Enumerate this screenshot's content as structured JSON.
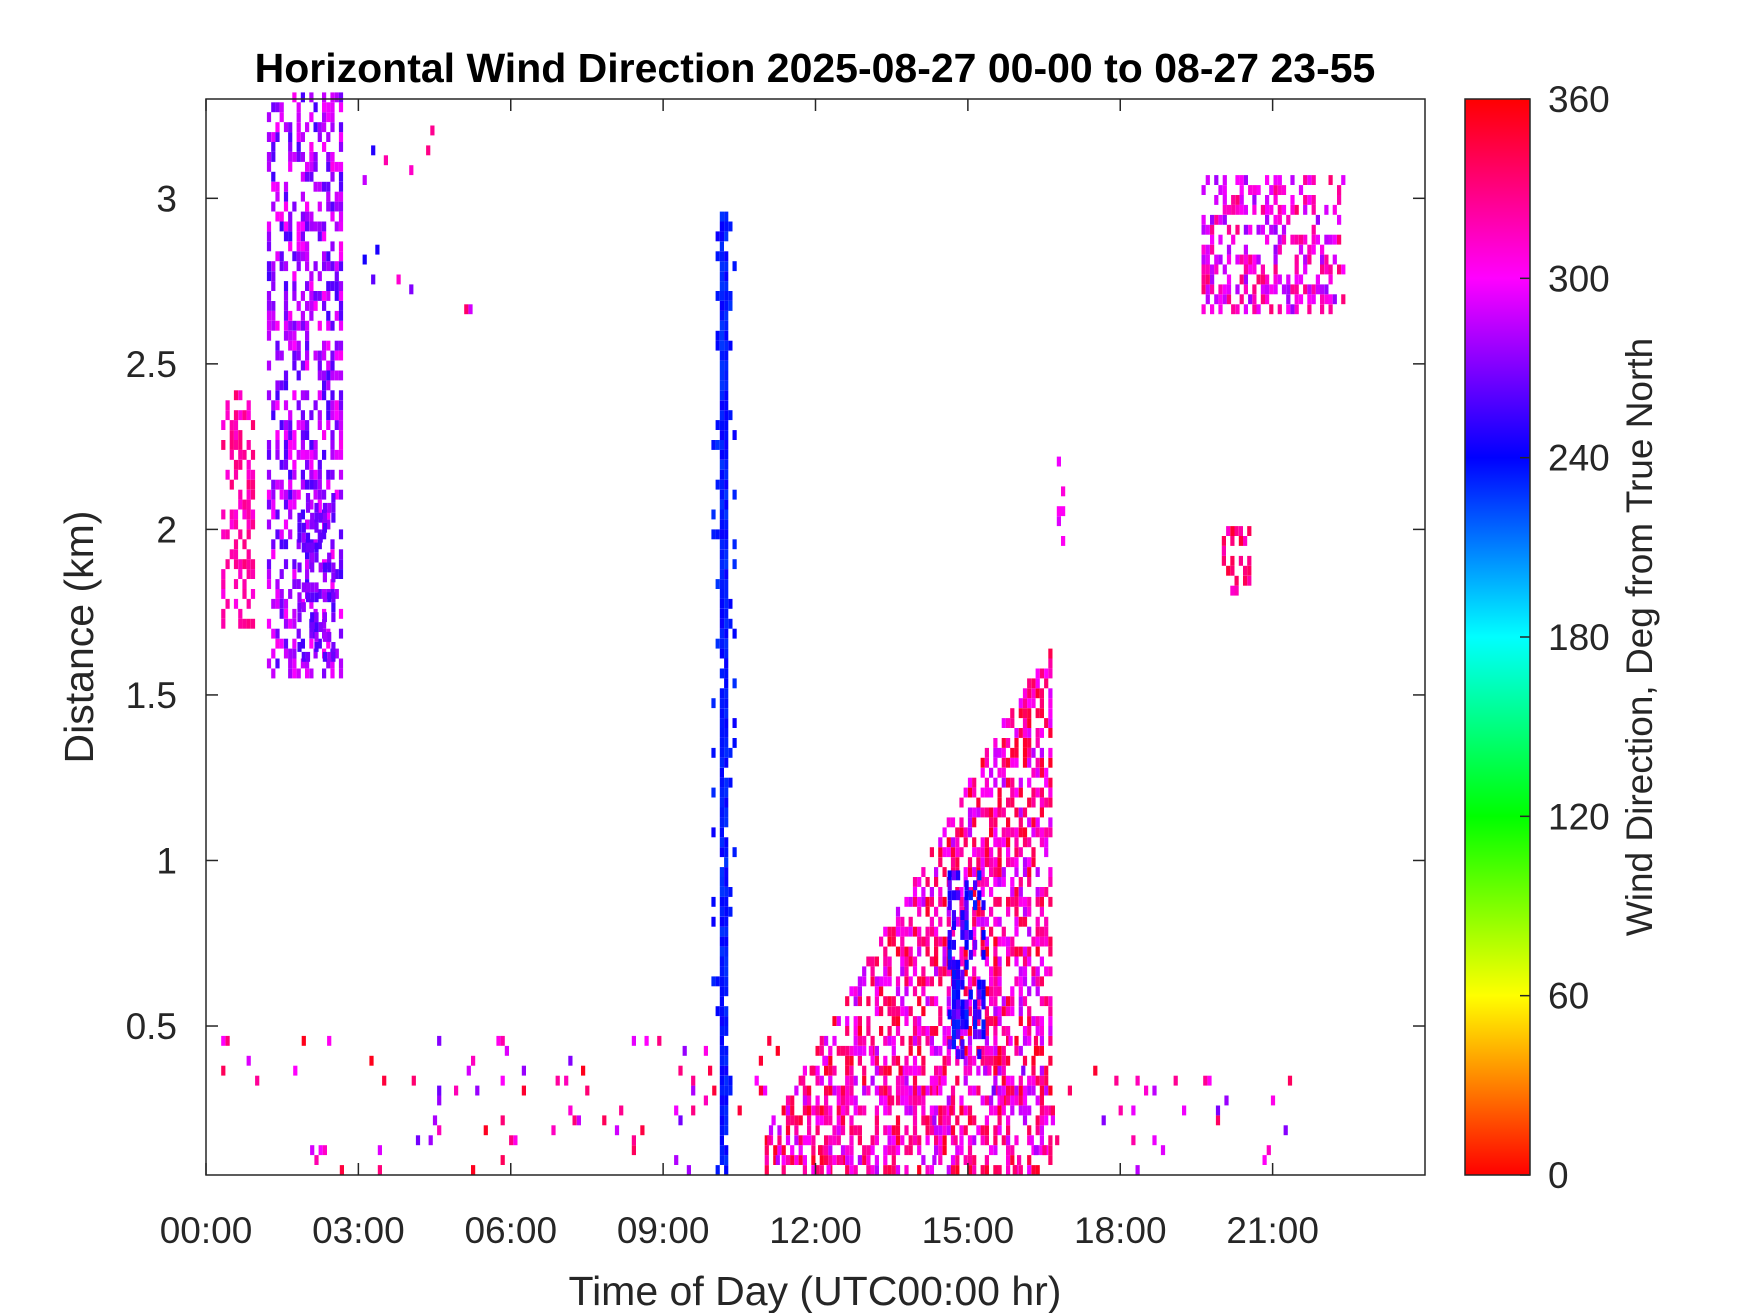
{
  "chart_data": {
    "type": "heatmap",
    "title": "Horizontal Wind Direction 2025-08-27 00-00 to 08-27 23-55",
    "xlabel": "Time of Day (UTC00:00 hr)",
    "ylabel": "Distance (km)",
    "colorbar_label": "Wind Direction, Deg from True North",
    "x_unit": "hours",
    "xlim": [
      0,
      24
    ],
    "ylim": [
      0.05,
      3.3
    ],
    "clim": [
      0,
      360
    ],
    "x_ticks": [
      {
        "value": 0,
        "label": "00:00"
      },
      {
        "value": 3,
        "label": "03:00"
      },
      {
        "value": 6,
        "label": "06:00"
      },
      {
        "value": 9,
        "label": "09:00"
      },
      {
        "value": 12,
        "label": "12:00"
      },
      {
        "value": 15,
        "label": "15:00"
      },
      {
        "value": 18,
        "label": "18:00"
      },
      {
        "value": 21,
        "label": "21:00"
      }
    ],
    "y_ticks": [
      {
        "value": 0.5,
        "label": "0.5"
      },
      {
        "value": 1,
        "label": "1"
      },
      {
        "value": 1.5,
        "label": "1.5"
      },
      {
        "value": 2,
        "label": "2"
      },
      {
        "value": 2.5,
        "label": "2.5"
      },
      {
        "value": 3,
        "label": "3"
      }
    ],
    "colorbar_ticks": [
      {
        "value": 0,
        "label": "0"
      },
      {
        "value": 60,
        "label": "60"
      },
      {
        "value": 120,
        "label": "120"
      },
      {
        "value": 180,
        "label": "180"
      },
      {
        "value": 240,
        "label": "240"
      },
      {
        "value": 300,
        "label": "300"
      },
      {
        "value": 360,
        "label": "360"
      }
    ],
    "colormap": [
      "#ff0000",
      "#ffff00",
      "#00ff00",
      "#00ffff",
      "#0000ff",
      "#ff00ff",
      "#ff0000"
    ],
    "clusters": [
      {
        "id": "early-upper-left",
        "t": [
          1.2,
          2.7
        ],
        "z": [
          1.55,
          3.3
        ],
        "dir": 280,
        "spread": 25
      },
      {
        "id": "early-purple-core",
        "t": [
          1.8,
          2.5
        ],
        "z": [
          1.6,
          2.1
        ],
        "dir": 268,
        "spread": 12
      },
      {
        "id": "early-magenta-left",
        "t": [
          0.3,
          0.9
        ],
        "z": [
          1.7,
          2.4
        ],
        "dir": 320,
        "spread": 15
      },
      {
        "id": "top-sparse-3h",
        "t": [
          3.0,
          5.2
        ],
        "z": [
          2.65,
          3.3
        ],
        "dir": 290,
        "spread": 50
      },
      {
        "id": "blue-column-10h",
        "t": [
          9.95,
          10.4
        ],
        "z": [
          0.05,
          2.95
        ],
        "dir": 235,
        "spread": 8
      },
      {
        "id": "afternoon-cone",
        "t": [
          11.0,
          16.6
        ],
        "z": [
          0.05,
          1.7
        ],
        "dir": 318,
        "spread": 35
      },
      {
        "id": "afternoon-blue-core",
        "t": [
          14.6,
          15.3
        ],
        "z": [
          0.4,
          0.95
        ],
        "dir": 250,
        "spread": 20
      },
      {
        "id": "late-upper-right",
        "t": [
          19.6,
          22.4
        ],
        "z": [
          2.65,
          3.05
        ],
        "dir": 305,
        "spread": 30
      },
      {
        "id": "late-mid-right",
        "t": [
          20.0,
          20.5
        ],
        "z": [
          1.8,
          2.0
        ],
        "dir": 330,
        "spread": 20
      },
      {
        "id": "near-surface-sparse",
        "t": [
          0.3,
          21.3
        ],
        "z": [
          0.05,
          0.45
        ],
        "dir": 310,
        "spread": 45
      },
      {
        "id": "mid-isolated-16.8h",
        "t": [
          16.75,
          16.85
        ],
        "z": [
          1.95,
          2.2
        ],
        "dir": 300,
        "spread": 10
      }
    ]
  }
}
